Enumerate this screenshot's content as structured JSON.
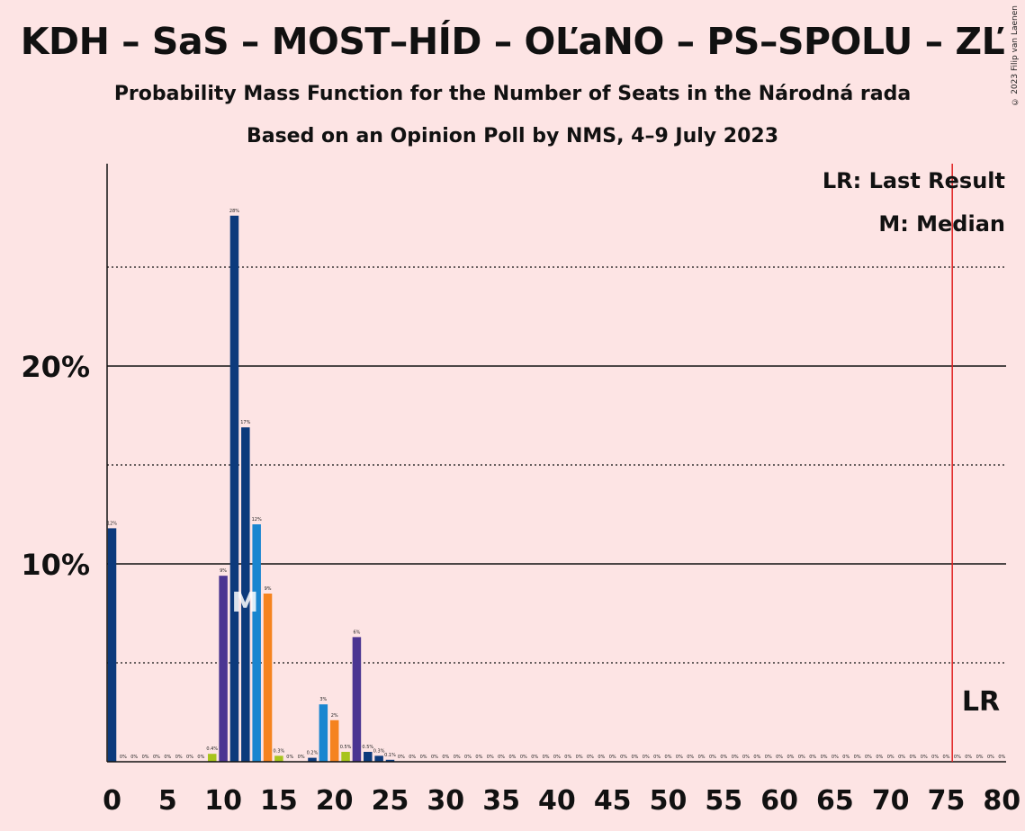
{
  "title": "KDH – SaS – MOST–HÍD – OĽaNO – PS–SPOLU – ZĽ",
  "subtitle1": "Probability Mass Function for the Number of Seats in the Národná rada",
  "subtitle2": "Based on an Opinion Poll by NMS, 4–9 July 2023",
  "copyright": "© 2023 Filip van Laenen",
  "legend": {
    "last_result": "LR: Last Result",
    "median": "M: Median"
  },
  "markers": {
    "median_label": "M",
    "median_seat": 12,
    "last_result_label": "LR",
    "last_result_seat": 76
  },
  "colors": {
    "background": "#fde4e4",
    "navy": "#0c3a7c",
    "blue": "#1a86d0",
    "purple": "#4b3592",
    "orange": "#f5831f",
    "lime": "#a8c41c",
    "last_result_line": "#e02020"
  },
  "chart_data": {
    "type": "bar",
    "xlabel": "",
    "ylabel": "",
    "xlim": [
      0,
      80
    ],
    "ylim": [
      0,
      30
    ],
    "x_ticks": [
      0,
      5,
      10,
      15,
      20,
      25,
      30,
      35,
      40,
      45,
      50,
      55,
      60,
      65,
      70,
      75,
      80
    ],
    "y_ticks": [
      {
        "value": 10,
        "label": "10%"
      },
      {
        "value": 20,
        "label": "20%"
      }
    ],
    "minor_gridlines": [
      5,
      15,
      25
    ],
    "bars": [
      {
        "seat": 0,
        "value": 11.8,
        "label": "12%",
        "color": "navy"
      },
      {
        "seat": 1,
        "value": 0,
        "label": "0%",
        "color": "navy"
      },
      {
        "seat": 2,
        "value": 0,
        "label": "0%",
        "color": "navy"
      },
      {
        "seat": 3,
        "value": 0,
        "label": "0%",
        "color": "navy"
      },
      {
        "seat": 4,
        "value": 0,
        "label": "0%",
        "color": "navy"
      },
      {
        "seat": 5,
        "value": 0,
        "label": "0%",
        "color": "navy"
      },
      {
        "seat": 6,
        "value": 0,
        "label": "0%",
        "color": "navy"
      },
      {
        "seat": 7,
        "value": 0,
        "label": "0%",
        "color": "navy"
      },
      {
        "seat": 8,
        "value": 0,
        "label": "0%",
        "color": "navy"
      },
      {
        "seat": 9,
        "value": 0.4,
        "label": "0.4%",
        "color": "lime"
      },
      {
        "seat": 10,
        "value": 9.4,
        "label": "9%",
        "color": "purple"
      },
      {
        "seat": 11,
        "value": 27.6,
        "label": "28%",
        "color": "navy"
      },
      {
        "seat": 12,
        "value": 16.9,
        "label": "17%",
        "color": "navy"
      },
      {
        "seat": 13,
        "value": 12.0,
        "label": "12%",
        "color": "blue"
      },
      {
        "seat": 14,
        "value": 8.5,
        "label": "9%",
        "color": "orange"
      },
      {
        "seat": 15,
        "value": 0.3,
        "label": "0.3%",
        "color": "lime"
      },
      {
        "seat": 16,
        "value": 0,
        "label": "0%",
        "color": "navy"
      },
      {
        "seat": 17,
        "value": 0,
        "label": "0%",
        "color": "navy"
      },
      {
        "seat": 18,
        "value": 0.2,
        "label": "0.2%",
        "color": "navy"
      },
      {
        "seat": 19,
        "value": 2.9,
        "label": "3%",
        "color": "blue"
      },
      {
        "seat": 20,
        "value": 2.1,
        "label": "2%",
        "color": "orange"
      },
      {
        "seat": 21,
        "value": 0.5,
        "label": "0.5%",
        "color": "lime"
      },
      {
        "seat": 22,
        "value": 6.3,
        "label": "6%",
        "color": "purple"
      },
      {
        "seat": 23,
        "value": 0.5,
        "label": "0.5%",
        "color": "navy"
      },
      {
        "seat": 24,
        "value": 0.3,
        "label": "0.3%",
        "color": "navy"
      },
      {
        "seat": 25,
        "value": 0.1,
        "label": "0.1%",
        "color": "navy"
      },
      {
        "seat": 26,
        "value": 0,
        "label": "0%",
        "color": "navy"
      },
      {
        "seat": 27,
        "value": 0,
        "label": "0%",
        "color": "navy"
      },
      {
        "seat": 28,
        "value": 0,
        "label": "0%",
        "color": "navy"
      },
      {
        "seat": 29,
        "value": 0,
        "label": "0%",
        "color": "navy"
      },
      {
        "seat": 30,
        "value": 0,
        "label": "0%",
        "color": "navy"
      },
      {
        "seat": 31,
        "value": 0,
        "label": "0%",
        "color": "navy"
      },
      {
        "seat": 32,
        "value": 0,
        "label": "0%",
        "color": "navy"
      },
      {
        "seat": 33,
        "value": 0,
        "label": "0%",
        "color": "navy"
      },
      {
        "seat": 34,
        "value": 0,
        "label": "0%",
        "color": "navy"
      },
      {
        "seat": 35,
        "value": 0,
        "label": "0%",
        "color": "navy"
      },
      {
        "seat": 36,
        "value": 0,
        "label": "0%",
        "color": "navy"
      },
      {
        "seat": 37,
        "value": 0,
        "label": "0%",
        "color": "navy"
      },
      {
        "seat": 38,
        "value": 0,
        "label": "0%",
        "color": "navy"
      },
      {
        "seat": 39,
        "value": 0,
        "label": "0%",
        "color": "navy"
      },
      {
        "seat": 40,
        "value": 0,
        "label": "0%",
        "color": "navy"
      },
      {
        "seat": 41,
        "value": 0,
        "label": "0%",
        "color": "navy"
      },
      {
        "seat": 42,
        "value": 0,
        "label": "0%",
        "color": "navy"
      },
      {
        "seat": 43,
        "value": 0,
        "label": "0%",
        "color": "navy"
      },
      {
        "seat": 44,
        "value": 0,
        "label": "0%",
        "color": "navy"
      },
      {
        "seat": 45,
        "value": 0,
        "label": "0%",
        "color": "navy"
      },
      {
        "seat": 46,
        "value": 0,
        "label": "0%",
        "color": "navy"
      },
      {
        "seat": 47,
        "value": 0,
        "label": "0%",
        "color": "navy"
      },
      {
        "seat": 48,
        "value": 0,
        "label": "0%",
        "color": "navy"
      },
      {
        "seat": 49,
        "value": 0,
        "label": "0%",
        "color": "navy"
      },
      {
        "seat": 50,
        "value": 0,
        "label": "0%",
        "color": "navy"
      },
      {
        "seat": 51,
        "value": 0,
        "label": "0%",
        "color": "navy"
      },
      {
        "seat": 52,
        "value": 0,
        "label": "0%",
        "color": "navy"
      },
      {
        "seat": 53,
        "value": 0,
        "label": "0%",
        "color": "navy"
      },
      {
        "seat": 54,
        "value": 0,
        "label": "0%",
        "color": "navy"
      },
      {
        "seat": 55,
        "value": 0,
        "label": "0%",
        "color": "navy"
      },
      {
        "seat": 56,
        "value": 0,
        "label": "0%",
        "color": "navy"
      },
      {
        "seat": 57,
        "value": 0,
        "label": "0%",
        "color": "navy"
      },
      {
        "seat": 58,
        "value": 0,
        "label": "0%",
        "color": "navy"
      },
      {
        "seat": 59,
        "value": 0,
        "label": "0%",
        "color": "navy"
      },
      {
        "seat": 60,
        "value": 0,
        "label": "0%",
        "color": "navy"
      },
      {
        "seat": 61,
        "value": 0,
        "label": "0%",
        "color": "navy"
      },
      {
        "seat": 62,
        "value": 0,
        "label": "0%",
        "color": "navy"
      },
      {
        "seat": 63,
        "value": 0,
        "label": "0%",
        "color": "navy"
      },
      {
        "seat": 64,
        "value": 0,
        "label": "0%",
        "color": "navy"
      },
      {
        "seat": 65,
        "value": 0,
        "label": "0%",
        "color": "navy"
      },
      {
        "seat": 66,
        "value": 0,
        "label": "0%",
        "color": "navy"
      },
      {
        "seat": 67,
        "value": 0,
        "label": "0%",
        "color": "navy"
      },
      {
        "seat": 68,
        "value": 0,
        "label": "0%",
        "color": "navy"
      },
      {
        "seat": 69,
        "value": 0,
        "label": "0%",
        "color": "navy"
      },
      {
        "seat": 70,
        "value": 0,
        "label": "0%",
        "color": "navy"
      },
      {
        "seat": 71,
        "value": 0,
        "label": "0%",
        "color": "navy"
      },
      {
        "seat": 72,
        "value": 0,
        "label": "0%",
        "color": "navy"
      },
      {
        "seat": 73,
        "value": 0,
        "label": "0%",
        "color": "navy"
      },
      {
        "seat": 74,
        "value": 0,
        "label": "0%",
        "color": "navy"
      },
      {
        "seat": 75,
        "value": 0,
        "label": "0%",
        "color": "navy"
      },
      {
        "seat": 76,
        "value": 0,
        "label": "0%",
        "color": "navy"
      },
      {
        "seat": 77,
        "value": 0,
        "label": "0%",
        "color": "navy"
      },
      {
        "seat": 78,
        "value": 0,
        "label": "0%",
        "color": "navy"
      },
      {
        "seat": 79,
        "value": 0,
        "label": "0%",
        "color": "navy"
      },
      {
        "seat": 80,
        "value": 0,
        "label": "0%",
        "color": "navy"
      }
    ]
  }
}
